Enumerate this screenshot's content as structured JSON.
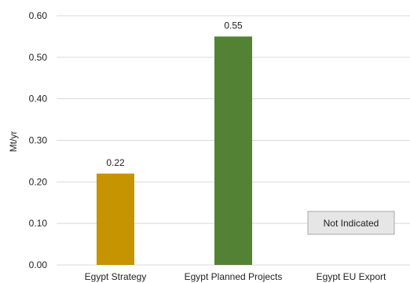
{
  "chart_data": {
    "type": "bar",
    "title": "",
    "xlabel": "",
    "ylabel": "Mt/yr",
    "ylim": [
      0,
      0.6
    ],
    "yticks": [
      "0.00",
      "0.10",
      "0.20",
      "0.30",
      "0.40",
      "0.50",
      "0.60"
    ],
    "grid": true,
    "categories": [
      "Egypt Strategy",
      "Egypt Planned Projects",
      "Egypt EU Export"
    ],
    "values": [
      0.22,
      0.55,
      null
    ],
    "data_labels": [
      "0.22",
      "0.55",
      ""
    ],
    "bar_colors": [
      "#C59400",
      "#548235",
      "#D9D9D9"
    ],
    "annotations": [
      {
        "category": "Egypt EU Export",
        "text": "Not Indicated"
      }
    ]
  }
}
